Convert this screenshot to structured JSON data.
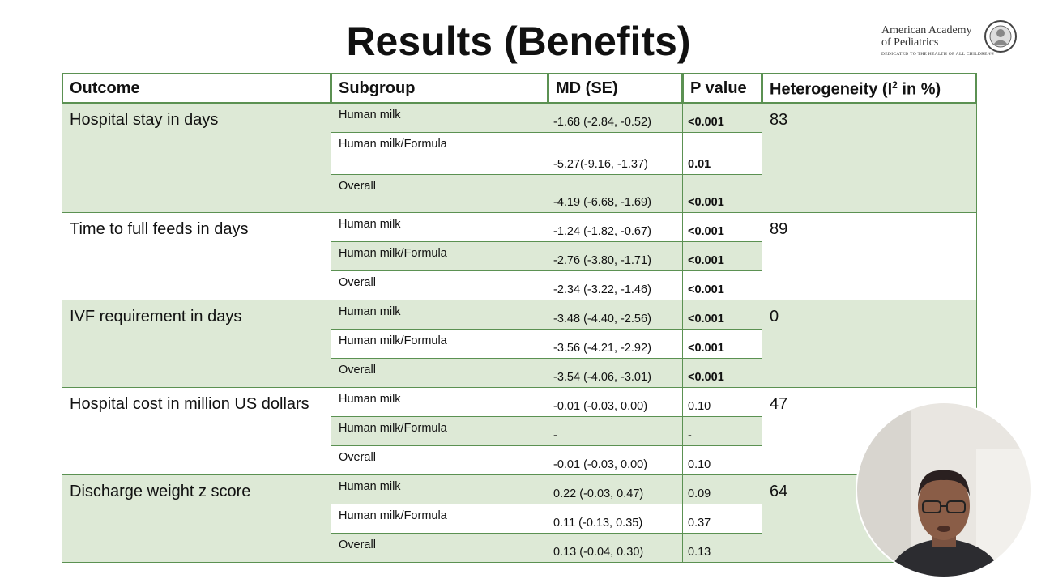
{
  "title": "Results (Benefits)",
  "logo": {
    "line1": "American Academy",
    "line2": "of Pediatrics",
    "tagline": "DEDICATED TO THE HEALTH OF ALL CHILDREN®"
  },
  "table": {
    "header": {
      "outcome": "Outcome",
      "subgroup": "Subgroup",
      "md": "MD (SE)",
      "p": "P value",
      "heterogeneity": {
        "before": "Heterogeneity (I",
        "sup": "2",
        "after": " in %)"
      }
    },
    "groups": [
      {
        "outcome": "Hospital stay in days",
        "heterogeneity": "83",
        "rows": [
          {
            "subgroup": "Human milk",
            "md": "-1.68 (-2.84, -0.52)",
            "p": "<0.001",
            "bold": true
          },
          {
            "subgroup": "Human milk/Formula",
            "md": "-5.27(-9.16, -1.37)",
            "p": "0.01",
            "bold": true
          },
          {
            "subgroup": "Overall",
            "md": "-4.19 (-6.68, -1.69)",
            "p": "<0.001",
            "bold": true
          }
        ]
      },
      {
        "outcome": "Time to full feeds in days",
        "heterogeneity": "89",
        "rows": [
          {
            "subgroup": "Human milk",
            "md": "-1.24 (-1.82, -0.67)",
            "p": "<0.001",
            "bold": true
          },
          {
            "subgroup": "Human milk/Formula",
            "md": "-2.76 (-3.80, -1.71)",
            "p": "<0.001",
            "bold": true
          },
          {
            "subgroup": "Overall",
            "md": "-2.34 (-3.22, -1.46)",
            "p": "<0.001",
            "bold": true
          }
        ]
      },
      {
        "outcome": "IVF requirement in days",
        "heterogeneity": "0",
        "rows": [
          {
            "subgroup": "Human milk",
            "md": "-3.48 (-4.40, -2.56)",
            "p": "<0.001",
            "bold": true
          },
          {
            "subgroup": "Human milk/Formula",
            "md": "-3.56 (-4.21, -2.92)",
            "p": "<0.001",
            "bold": true
          },
          {
            "subgroup": "Overall",
            "md": "-3.54 (-4.06, -3.01)",
            "p": "<0.001",
            "bold": true
          }
        ]
      },
      {
        "outcome": "Hospital cost in million US dollars",
        "heterogeneity": "47",
        "rows": [
          {
            "subgroup": "Human milk",
            "md": "-0.01 (-0.03, 0.00)",
            "p": "0.10",
            "bold": false
          },
          {
            "subgroup": "Human milk/Formula",
            "md": "-",
            "p": "-",
            "bold": false
          },
          {
            "subgroup": "Overall",
            "md": "-0.01 (-0.03, 0.00)",
            "p": "0.10",
            "bold": false
          }
        ]
      },
      {
        "outcome": "Discharge weight z score",
        "heterogeneity": "64",
        "rows": [
          {
            "subgroup": "Human milk",
            "md": "0.22 (-0.03, 0.47)",
            "p": "0.09",
            "bold": false
          },
          {
            "subgroup": "Human milk/Formula",
            "md": "0.11 (-0.13, 0.35)",
            "p": "0.37",
            "bold": false
          },
          {
            "subgroup": "Overall",
            "md": "0.13 (-0.04, 0.30)",
            "p": "0.13",
            "bold": false
          }
        ]
      }
    ]
  }
}
